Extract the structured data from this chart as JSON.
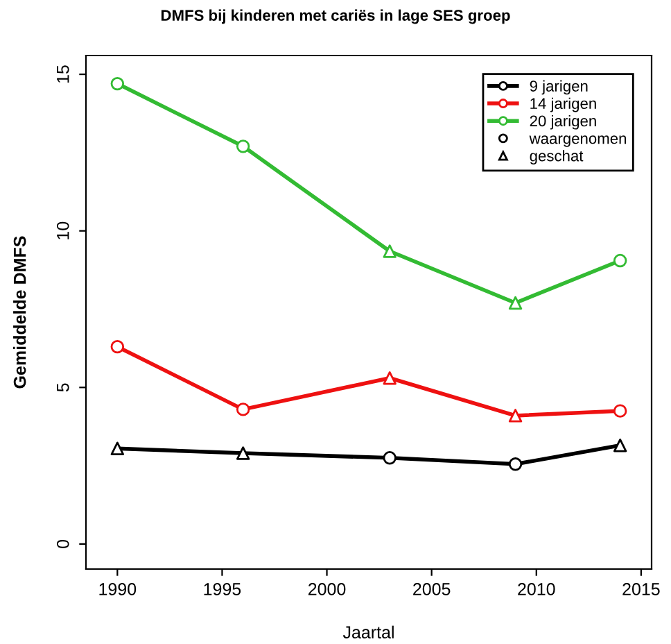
{
  "chart_data": {
    "type": "line",
    "title": "DMFS bij kinderen met cariës in lage SES groep",
    "xlabel": "Jaartal",
    "ylabel": "Gemiddelde DMFS",
    "xlim": [
      1988.5,
      2015.5
    ],
    "xticks": [
      1990,
      1995,
      2000,
      2005,
      2010,
      2015
    ],
    "ylim": [
      -0.8,
      15.6
    ],
    "yticks": [
      0,
      5,
      10,
      15
    ],
    "grid": false,
    "legend": "top right",
    "series": [
      {
        "name": "9 jarigen",
        "color": "#000000",
        "marker": "none",
        "x": [
          1990,
          1996,
          2003,
          2009,
          2014
        ],
        "values": [
          3.05,
          2.9,
          2.75,
          2.55,
          3.15
        ]
      },
      {
        "name": "14 jarigen",
        "color": "#ee1111",
        "marker": "none",
        "x": [
          1990,
          1996,
          2003,
          2009,
          2014
        ],
        "values": [
          6.3,
          4.3,
          5.3,
          4.1,
          4.25
        ]
      },
      {
        "name": "20 jarigen",
        "color": "#33bb33",
        "marker": "none",
        "x": [
          1990,
          1996,
          2003,
          2009,
          2014
        ],
        "values": [
          14.7,
          12.7,
          9.35,
          7.7,
          9.05
        ]
      },
      {
        "name": "waargenomen",
        "color": "#000000",
        "type": "scatter",
        "marker": "circle",
        "x": [
          2003,
          2009,
          1990,
          1996,
          2014,
          1990,
          1996,
          2014
        ],
        "values": [
          2.75,
          2.55,
          6.3,
          4.3,
          4.25,
          14.7,
          12.7,
          9.05
        ],
        "colors": [
          "#000000",
          "#000000",
          "#ee1111",
          "#ee1111",
          "#ee1111",
          "#33bb33",
          "#33bb33",
          "#33bb33"
        ]
      },
      {
        "name": "geschat",
        "color": "#000000",
        "type": "scatter",
        "marker": "triangle",
        "x": [
          1990,
          1996,
          2014,
          2003,
          2009,
          2003,
          2009
        ],
        "values": [
          3.05,
          2.9,
          3.15,
          5.3,
          4.1,
          9.35,
          7.7
        ],
        "colors": [
          "#000000",
          "#000000",
          "#000000",
          "#ee1111",
          "#ee1111",
          "#33bb33",
          "#33bb33"
        ]
      }
    ]
  }
}
